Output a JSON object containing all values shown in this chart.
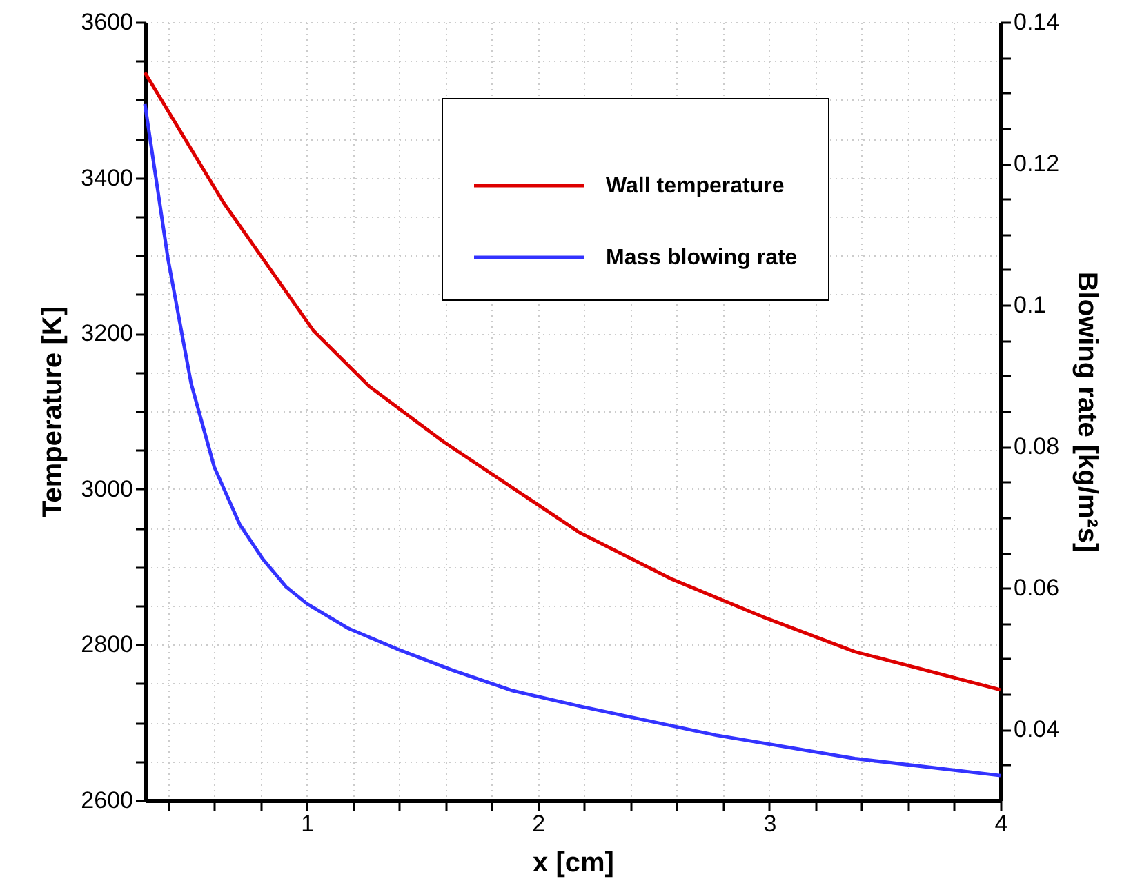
{
  "chart_data": {
    "type": "line",
    "xlabel": "x [cm]",
    "ylabel": "Temperature [K]",
    "y2label": "Blowing rate [kg/m²s]",
    "xlim": [
      0.3,
      4
    ],
    "xticks": [
      {
        "value": 0.4,
        "label": null
      },
      {
        "value": 0.6,
        "label": null
      },
      {
        "value": 0.8,
        "label": null
      },
      1,
      {
        "value": 1.2,
        "label": null
      },
      {
        "value": 1.4,
        "label": null
      },
      {
        "value": 1.6,
        "label": null
      },
      {
        "value": 1.8,
        "label": null
      },
      2,
      {
        "value": 2.2,
        "label": null
      },
      {
        "value": 2.4,
        "label": null
      },
      {
        "value": 2.6,
        "label": null
      },
      {
        "value": 2.8,
        "label": null
      },
      3,
      {
        "value": 3.2,
        "label": null
      },
      {
        "value": 3.4,
        "label": null
      },
      {
        "value": 3.6,
        "label": null
      },
      {
        "value": 3.8,
        "label": null
      },
      4
    ],
    "ylim": [
      2600,
      3600
    ],
    "yticks": [
      2600,
      {
        "value": 2650,
        "label": null
      },
      {
        "value": 2700,
        "label": null
      },
      {
        "value": 2750,
        "label": null
      },
      2800,
      {
        "value": 2850,
        "label": null
      },
      {
        "value": 2900,
        "label": null
      },
      {
        "value": 2950,
        "label": null
      },
      3000,
      {
        "value": 3050,
        "label": null
      },
      {
        "value": 3100,
        "label": null
      },
      {
        "value": 3150,
        "label": null
      },
      3200,
      {
        "value": 3250,
        "label": null
      },
      {
        "value": 3300,
        "label": null
      },
      {
        "value": 3350,
        "label": null
      },
      3400,
      {
        "value": 3450,
        "label": null
      },
      {
        "value": 3500,
        "label": null
      },
      {
        "value": 3550,
        "label": null
      },
      3600
    ],
    "y2lim": [
      0.03,
      0.14
    ],
    "y2ticks": [
      {
        "value": 0.035,
        "label": null
      },
      0.04,
      {
        "value": 0.045,
        "label": null
      },
      {
        "value": 0.05,
        "label": null
      },
      {
        "value": 0.055,
        "label": null
      },
      0.06,
      {
        "value": 0.065,
        "label": null
      },
      {
        "value": 0.07,
        "label": null
      },
      {
        "value": 0.075,
        "label": null
      },
      0.08,
      {
        "value": 0.085,
        "label": null
      },
      {
        "value": 0.09,
        "label": null
      },
      {
        "value": 0.095,
        "label": null
      },
      0.1,
      {
        "value": 0.105,
        "label": null
      },
      {
        "value": 0.11,
        "label": null
      },
      {
        "value": 0.115,
        "label": null
      },
      0.12,
      {
        "value": 0.125,
        "label": null
      },
      {
        "value": 0.13,
        "label": null
      },
      {
        "value": 0.135,
        "label": null
      },
      0.14
    ],
    "grid": true,
    "legend": "top right",
    "marker": "none",
    "line_style": "solid",
    "series": [
      {
        "name": "Wall temperature",
        "color": "#dd0000",
        "x": [
          0.3,
          0.64,
          1.03,
          1.27,
          1.59,
          2.18,
          2.58,
          2.97,
          3.37,
          4.0
        ],
        "values": [
          3535,
          3368,
          3203,
          3132,
          3061,
          2944,
          2884,
          2836,
          2791,
          2742
        ]
      },
      {
        "name": "Mass blowing rate",
        "color": "#3333ff",
        "axis": "y2",
        "x": [
          0.3,
          0.4,
          0.5,
          0.6,
          0.71,
          0.81,
          0.91,
          1.0,
          1.18,
          1.39,
          1.63,
          1.89,
          2.18,
          2.77,
          3.37,
          4.0
        ],
        "values": [
          0.1284,
          0.1065,
          0.0889,
          0.0771,
          0.069,
          0.0641,
          0.0602,
          0.0578,
          0.0543,
          0.0514,
          0.0484,
          0.0455,
          0.0433,
          0.0392,
          0.0359,
          0.0335
        ]
      }
    ]
  }
}
